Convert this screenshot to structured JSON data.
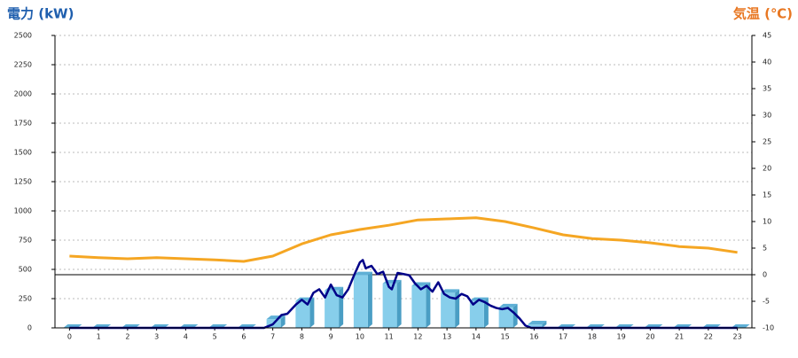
{
  "chart_data": {
    "type": "bar",
    "title": "電力 (kW)",
    "y2_title": "気温 (℃)",
    "categories": [
      "0",
      "1",
      "2",
      "3",
      "4",
      "5",
      "6",
      "7",
      "8",
      "9",
      "10",
      "11",
      "12",
      "13",
      "14",
      "15",
      "16",
      "17",
      "18",
      "19",
      "20",
      "21",
      "22",
      "23"
    ],
    "ylim": [
      0,
      2500
    ],
    "yticks": [
      0,
      250,
      500,
      750,
      1000,
      1250,
      1500,
      1750,
      2000,
      2250,
      2500
    ],
    "y2lim": [
      -10,
      45
    ],
    "y2ticks": [
      -10,
      -5,
      0,
      5,
      10,
      15,
      20,
      25,
      30,
      35,
      40,
      45
    ],
    "grid": true,
    "series": [
      {
        "type": "bar",
        "color": "#87ceeb",
        "values": [
          0,
          0,
          0,
          0,
          0,
          0,
          0,
          75,
          230,
          320,
          450,
          380,
          360,
          300,
          230,
          175,
          30,
          0,
          0,
          0,
          0,
          0,
          0,
          0
        ]
      },
      {
        "type": "line",
        "color": "#000088",
        "x": [
          0,
          6.7,
          7.0,
          7.3,
          7.5,
          7.8,
          8.0,
          8.2,
          8.4,
          8.6,
          8.8,
          9.0,
          9.2,
          9.4,
          9.6,
          9.8,
          10.0,
          10.1,
          10.2,
          10.4,
          10.6,
          10.8,
          11.0,
          11.1,
          11.3,
          11.5,
          11.7,
          11.9,
          12.1,
          12.3,
          12.5,
          12.7,
          12.9,
          13.1,
          13.3,
          13.5,
          13.7,
          13.9,
          14.1,
          14.3,
          14.5,
          14.7,
          14.9,
          15.1,
          15.3,
          15.5,
          15.7,
          15.9,
          23
        ],
        "values": [
          0,
          0,
          30,
          110,
          120,
          200,
          240,
          200,
          300,
          330,
          260,
          370,
          280,
          260,
          330,
          450,
          560,
          580,
          510,
          530,
          460,
          480,
          350,
          330,
          470,
          460,
          450,
          380,
          330,
          360,
          310,
          390,
          290,
          260,
          250,
          290,
          270,
          200,
          240,
          220,
          190,
          170,
          160,
          170,
          130,
          80,
          20,
          0,
          0
        ]
      },
      {
        "type": "line",
        "axis": "y2",
        "color": "#f5a623",
        "values": [
          3.5,
          3.2,
          3.0,
          3.2,
          3.0,
          2.8,
          2.5,
          3.5,
          5.8,
          7.5,
          8.5,
          9.3,
          10.3,
          10.5,
          10.7,
          10.0,
          8.8,
          7.5,
          6.8,
          6.5,
          6.0,
          5.3,
          5.0,
          4.2
        ]
      }
    ]
  }
}
